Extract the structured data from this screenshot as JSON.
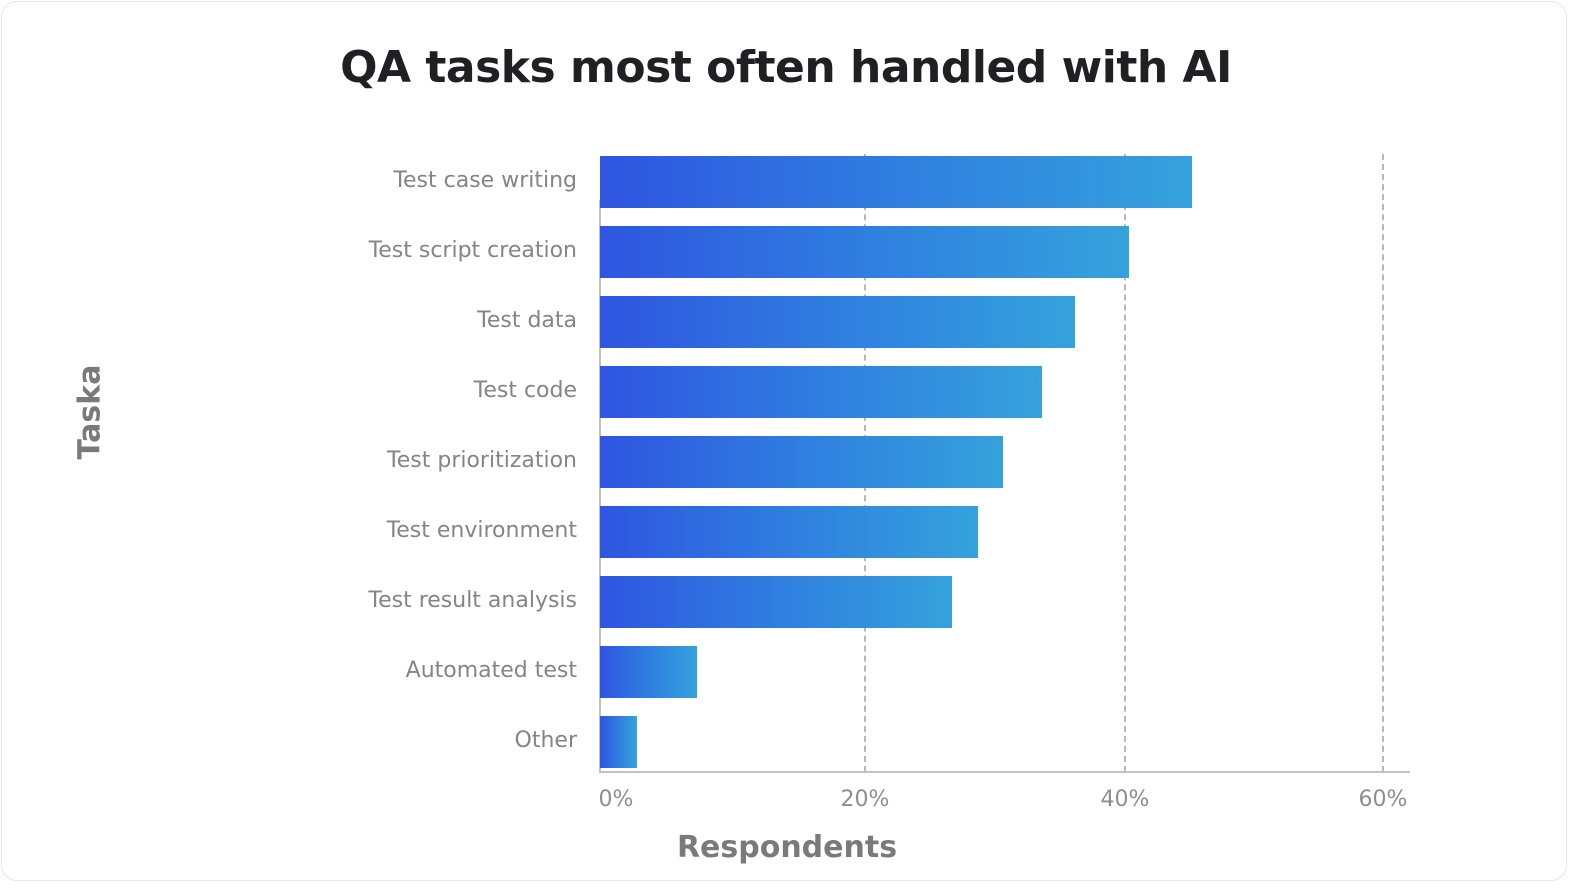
{
  "chart_data": {
    "type": "bar",
    "orientation": "horizontal",
    "title": "QA tasks most often handled with AI",
    "xlabel": "Respondents",
    "ylabel": "Taska",
    "categories": [
      "Test case writing",
      "Test script creation",
      "Test data",
      "Test code",
      "Test prioritization",
      "Test environment",
      "Test result analysis",
      "Automated test",
      "Other"
    ],
    "values": [
      45.4,
      40.5,
      36.4,
      33.9,
      30.9,
      29.0,
      27.0,
      7.4,
      2.8
    ],
    "unit": "%",
    "xlim": [
      0,
      60
    ],
    "xticks": [
      "0%",
      "20%",
      "40%",
      "60%"
    ],
    "grid": "vertical dashed at 20%, 40%, 60%",
    "legend": null,
    "bar_gradient": [
      "#2f55e0",
      "#35a2dc"
    ]
  },
  "ticks": [
    "0%",
    "20%",
    "40%",
    "60%"
  ]
}
